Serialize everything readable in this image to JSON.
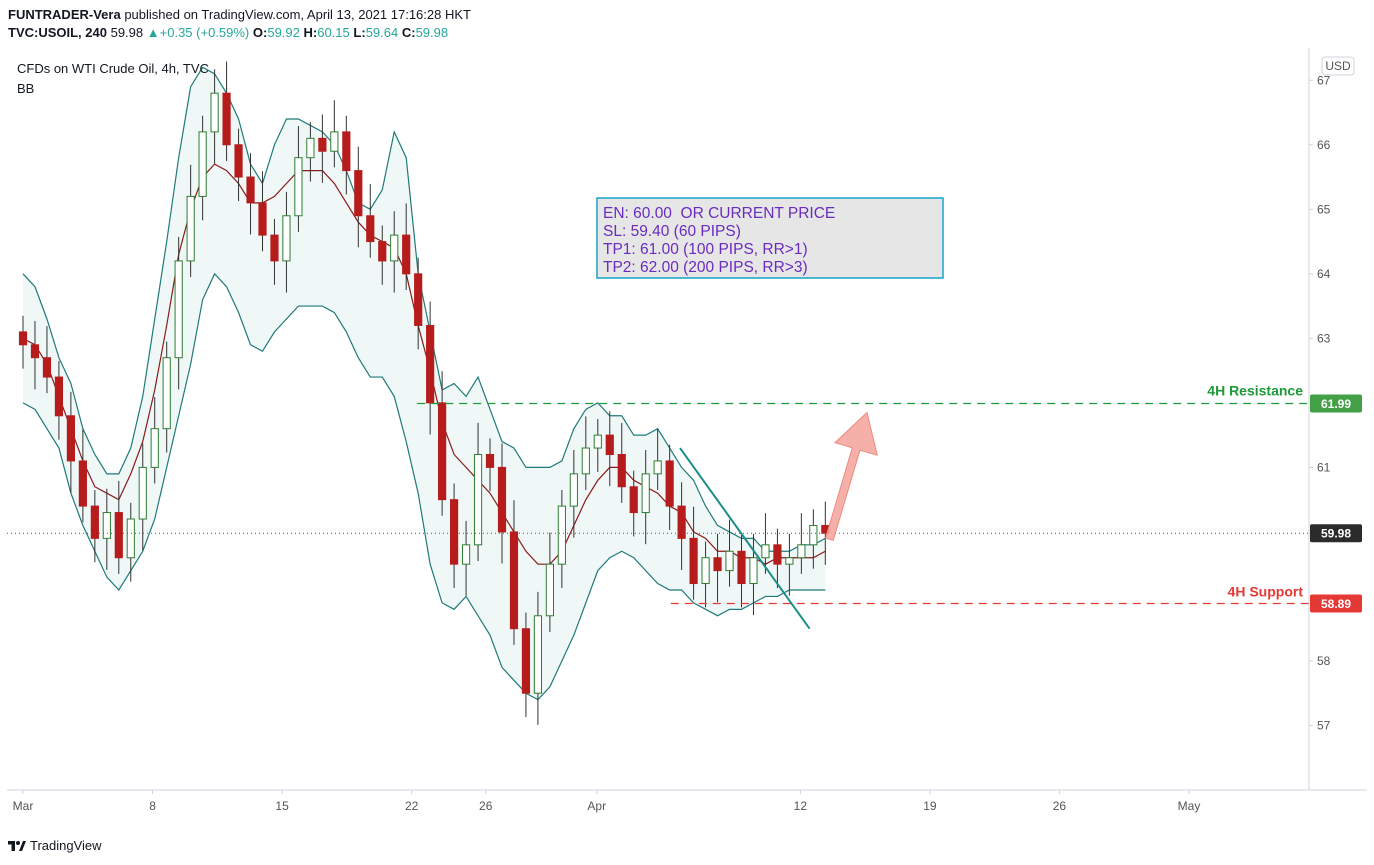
{
  "header": {
    "publisher": "FUNTRADER-Vera",
    "published_text": "published on TradingView.com, April 13, 2021 17:16:28 HKT",
    "symbol": "TVC:USOIL, 240",
    "last": "59.98",
    "change": "+0.35 (+0.59%)",
    "o_label": "O:",
    "o_val": "59.92",
    "h_label": "H:",
    "h_val": "60.15",
    "l_label": "L:",
    "l_val": "59.64",
    "c_label": "C:",
    "c_val": "59.98"
  },
  "legend": {
    "instrument": "CFDs on WTI Crude Oil, 4h, TVC",
    "indicator": "BB"
  },
  "info_box": {
    "lines": [
      "EN: 60.00  OR CURRENT PRICE",
      "SL: 59.40 (60 PIPS)",
      "TP1: 61.00 (100 PIPS, RR>1)",
      "TP2: 62.00 (200 PIPS, RR>3)"
    ]
  },
  "annotations": {
    "resistance_label": "4H Resistance",
    "support_label": "4H Support"
  },
  "footer": {
    "brand": "TradingView"
  },
  "colors": {
    "up": "#26a69a",
    "down": "#ef5350",
    "bb_band": "#1f7a7a",
    "bb_basis": "#8b1a1a",
    "resistance": "#1e9a3a",
    "support": "#e53935",
    "arrow": "#f4a29b"
  },
  "chart_data": {
    "type": "candlestick",
    "currency": "USD",
    "last_price": 59.98,
    "last_price_label": "59.98",
    "resistance": 61.99,
    "resistance_label": "61.99",
    "support": 58.89,
    "support_label": "58.89",
    "ylim": [
      56.0,
      67.5
    ],
    "y_ticks": [
      57,
      58,
      61,
      62,
      63,
      64,
      65,
      66,
      67
    ],
    "y_tick_labels": [
      "57",
      "58",
      "61",
      "62",
      "63",
      "64",
      "65",
      "66",
      "67"
    ],
    "x_ticks": [
      {
        "label": "Mar",
        "date": "2021-03-01"
      },
      {
        "label": "8",
        "date": "2021-03-08"
      },
      {
        "label": "15",
        "date": "2021-03-15"
      },
      {
        "label": "22",
        "date": "2021-03-22"
      },
      {
        "label": "26",
        "date": "2021-03-26"
      },
      {
        "label": "Apr",
        "date": "2021-04-01"
      },
      {
        "label": "12",
        "date": "2021-04-12"
      },
      {
        "label": "19",
        "date": "2021-04-19"
      },
      {
        "label": "26",
        "date": "2021-04-26"
      },
      {
        "label": "May",
        "date": "2021-05-03"
      }
    ],
    "closes": [
      62.9,
      62.7,
      62.4,
      61.8,
      61.1,
      60.4,
      59.9,
      60.3,
      59.6,
      60.2,
      61.0,
      61.6,
      62.7,
      64.2,
      65.2,
      66.2,
      66.8,
      66.0,
      65.5,
      65.1,
      64.6,
      64.2,
      64.9,
      65.8,
      66.1,
      65.9,
      66.2,
      65.6,
      64.9,
      64.5,
      64.2,
      64.6,
      64.0,
      63.2,
      62.0,
      60.5,
      59.5,
      59.8,
      61.2,
      61.0,
      60.0,
      58.5,
      57.5,
      58.7,
      59.5,
      60.4,
      60.9,
      61.3,
      61.5,
      61.2,
      60.7,
      60.3,
      60.9,
      61.1,
      60.4,
      59.9,
      59.2,
      59.6,
      59.4,
      59.7,
      59.2,
      59.6,
      59.8,
      59.5,
      59.6,
      59.8,
      60.1,
      59.98
    ],
    "bb_upper": [
      64.0,
      63.8,
      63.3,
      62.7,
      62.3,
      61.6,
      61.2,
      60.9,
      60.9,
      61.3,
      62.1,
      63.3,
      64.5,
      65.8,
      66.9,
      67.2,
      67.1,
      66.8,
      66.4,
      65.7,
      65.4,
      66.0,
      66.4,
      66.4,
      66.3,
      66.2,
      66.0,
      65.6,
      65.1,
      65.0,
      65.3,
      66.2,
      65.8,
      64.0,
      63.1,
      62.2,
      62.3,
      62.1,
      62.4,
      61.9,
      61.4,
      61.3,
      61.0,
      61.0,
      61.0,
      61.1,
      61.6,
      61.9,
      62.0,
      61.8,
      61.8,
      61.5,
      61.5,
      61.6,
      61.3,
      61.0,
      60.8,
      60.4,
      60.1,
      60.0,
      59.9,
      59.9,
      59.7,
      59.7,
      59.7,
      59.8,
      59.8,
      59.9
    ],
    "bb_basis": [
      63.0,
      62.9,
      62.6,
      62.1,
      61.6,
      61.1,
      60.7,
      60.6,
      60.5,
      60.9,
      61.4,
      62.2,
      63.2,
      64.3,
      65.0,
      65.5,
      65.7,
      65.6,
      65.4,
      65.1,
      65.1,
      65.2,
      65.4,
      65.6,
      65.6,
      65.6,
      65.4,
      65.1,
      64.8,
      64.6,
      64.5,
      64.4,
      64.0,
      63.2,
      62.5,
      61.7,
      61.2,
      61.0,
      60.8,
      60.6,
      60.3,
      60.0,
      59.7,
      59.5,
      59.5,
      59.7,
      60.1,
      60.5,
      60.8,
      61.0,
      61.0,
      60.8,
      60.7,
      60.6,
      60.4,
      60.3,
      60.0,
      59.9,
      59.7,
      59.7,
      59.6,
      59.6,
      59.5,
      59.6,
      59.6,
      59.6,
      59.6,
      59.7
    ],
    "bb_lower": [
      62.0,
      61.9,
      61.6,
      61.3,
      60.6,
      60.1,
      59.7,
      59.3,
      59.1,
      59.4,
      59.7,
      60.2,
      61.0,
      61.8,
      62.6,
      63.6,
      64.0,
      63.8,
      63.4,
      62.9,
      62.8,
      63.1,
      63.3,
      63.5,
      63.5,
      63.5,
      63.4,
      63.1,
      62.7,
      62.4,
      62.4,
      62.1,
      61.4,
      60.6,
      59.5,
      58.9,
      58.8,
      59.0,
      58.7,
      58.4,
      57.9,
      57.7,
      57.5,
      57.4,
      57.6,
      58.0,
      58.4,
      58.9,
      59.4,
      59.6,
      59.7,
      59.6,
      59.4,
      59.2,
      59.1,
      59.1,
      58.9,
      58.8,
      58.7,
      58.8,
      58.8,
      58.9,
      59.0,
      59.0,
      59.1,
      59.1,
      59.1,
      59.1
    ]
  }
}
